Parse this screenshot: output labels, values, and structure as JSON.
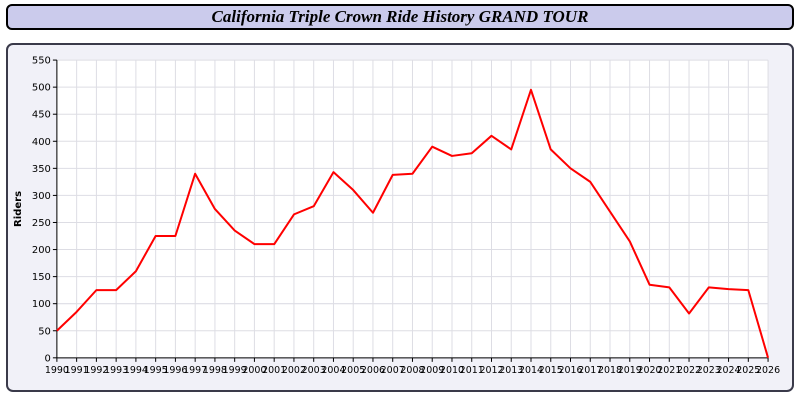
{
  "title": "California Triple Crown Ride History GRAND TOUR",
  "colors": {
    "title_bar_bg": "#cbcbec",
    "panel_bg": "#f1f1f8",
    "plot_bg": "#ffffff",
    "grid": "#dddde4",
    "axis": "#000000",
    "line": "#ff0000"
  },
  "chart_data": {
    "type": "line",
    "title": "California Triple Crown Ride History GRAND TOUR",
    "xlabel": "",
    "ylabel": "Riders",
    "ylim": [
      0,
      550
    ],
    "ytick_step": 50,
    "grid": true,
    "legend_position": "none",
    "x": [
      1990,
      1991,
      1992,
      1993,
      1994,
      1995,
      1996,
      1997,
      1998,
      1999,
      2000,
      2001,
      2002,
      2003,
      2004,
      2005,
      2006,
      2007,
      2008,
      2009,
      2010,
      2011,
      2012,
      2013,
      2014,
      2015,
      2016,
      2017,
      2018,
      2019,
      2020,
      2021,
      2022,
      2023,
      2024,
      2025,
      2026
    ],
    "series": [
      {
        "name": "Riders",
        "color": "#ff0000",
        "values": [
          50,
          85,
          125,
          125,
          160,
          225,
          225,
          340,
          275,
          235,
          210,
          210,
          265,
          280,
          343,
          310,
          268,
          338,
          340,
          390,
          373,
          378,
          410,
          385,
          495,
          385,
          350,
          325,
          270,
          215,
          135,
          130,
          82,
          130,
          127,
          125,
          0
        ]
      }
    ]
  }
}
